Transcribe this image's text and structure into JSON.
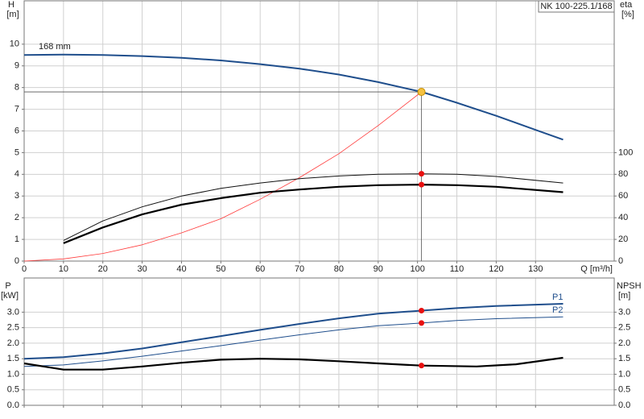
{
  "chart_data": [
    {
      "type": "line",
      "legend_box": "NK 100-225.1/168",
      "y_label": "H",
      "y_unit": "[m]",
      "y2_label": "eta",
      "y2_unit": "[%]",
      "x_label": "Q [m³/h]",
      "xlim": [
        0,
        150
      ],
      "xticks": [
        0,
        10,
        20,
        30,
        40,
        50,
        60,
        70,
        80,
        90,
        100,
        110,
        120,
        130
      ],
      "ylim": [
        0,
        12
      ],
      "yticks": [
        0,
        1,
        2,
        3,
        4,
        5,
        6,
        7,
        8,
        9,
        10
      ],
      "y2lim": [
        0,
        240
      ],
      "y2ticks": [
        0,
        20,
        40,
        60,
        80,
        100
      ],
      "grid": true,
      "show_xtick_labels": true,
      "series": [
        {
          "name": "168 mm",
          "label_at": "start",
          "color": "#1f4e8c",
          "width": 2,
          "x": [
            0,
            10,
            20,
            30,
            40,
            50,
            60,
            70,
            80,
            90,
            101,
            110,
            120,
            130,
            137
          ],
          "values": [
            9.5,
            9.52,
            9.5,
            9.45,
            9.37,
            9.25,
            9.08,
            8.87,
            8.6,
            8.25,
            7.8,
            7.3,
            6.7,
            6.05,
            5.6
          ]
        },
        {
          "color": "#ff3b3b",
          "width": 0.8,
          "x": [
            0,
            10,
            20,
            30,
            40,
            50,
            60,
            70,
            80,
            90,
            101
          ],
          "values": [
            0,
            0.1,
            0.35,
            0.75,
            1.3,
            1.95,
            2.85,
            3.85,
            4.95,
            6.25,
            7.8
          ]
        },
        {
          "axis": "y2",
          "color": "#111",
          "width": 1,
          "x": [
            10,
            20,
            30,
            40,
            50,
            60,
            70,
            80,
            90,
            101,
            110,
            120,
            137
          ],
          "values": [
            19,
            37,
            50,
            60,
            67,
            72,
            76,
            78.5,
            80,
            80.5,
            80,
            78,
            72
          ]
        },
        {
          "axis": "y2",
          "color": "#000",
          "width": 2.2,
          "x": [
            10,
            20,
            30,
            40,
            50,
            60,
            70,
            80,
            90,
            101,
            110,
            120,
            137
          ],
          "values": [
            16.5,
            31,
            43,
            52,
            58,
            63,
            66,
            68.5,
            70,
            70.5,
            70,
            68.5,
            63.5
          ]
        }
      ],
      "operating_point": {
        "x": 101,
        "y": 7.8,
        "color": "#f5c242"
      },
      "points": [
        {
          "x": 101,
          "y": 80.5,
          "axis": "y2",
          "color": "#e81010"
        },
        {
          "x": 101,
          "y": 70.5,
          "axis": "y2",
          "color": "#e81010"
        }
      ]
    },
    {
      "type": "line",
      "y_label": "P",
      "y_unit": "[kW]",
      "y2_label": "NPSH",
      "y2_unit": "[m]",
      "xlim": [
        0,
        150
      ],
      "xticks": [
        0,
        10,
        20,
        30,
        40,
        50,
        60,
        70,
        80,
        90,
        100,
        110,
        120,
        130
      ],
      "ylim": [
        0,
        4.1
      ],
      "yticks": [
        {
          "value": 0,
          "label": "0.0"
        },
        {
          "value": 0.5,
          "label": "0.5"
        },
        {
          "value": 1,
          "label": "1.0"
        },
        {
          "value": 1.5,
          "label": "1.5"
        },
        {
          "value": 2,
          "label": "2.0"
        },
        {
          "value": 2.5,
          "label": "2.5"
        },
        {
          "value": 3,
          "label": "3.0"
        }
      ],
      "y2lim": [
        0,
        4.1
      ],
      "y2ticks": [
        {
          "value": 0,
          "label": "0.0"
        },
        {
          "value": 0.5,
          "label": "0.5"
        },
        {
          "value": 1,
          "label": "1.0"
        },
        {
          "value": 1.5,
          "label": "1.5"
        },
        {
          "value": 2,
          "label": "2.0"
        },
        {
          "value": 2.5,
          "label": "2.5"
        },
        {
          "value": 3,
          "label": "3.0"
        }
      ],
      "grid": true,
      "show_xtick_labels": false,
      "series": [
        {
          "name": "P1",
          "label_at": "end",
          "color": "#1f4e8c",
          "width": 2,
          "x": [
            0,
            10,
            20,
            30,
            40,
            50,
            60,
            70,
            80,
            90,
            101,
            110,
            120,
            137
          ],
          "values": [
            1.5,
            1.55,
            1.67,
            1.83,
            2.03,
            2.23,
            2.43,
            2.62,
            2.8,
            2.95,
            3.05,
            3.13,
            3.2,
            3.27
          ]
        },
        {
          "name": "P2",
          "label_at": "end",
          "color": "#1f4e8c",
          "width": 1,
          "x": [
            0,
            10,
            20,
            30,
            40,
            50,
            60,
            70,
            80,
            90,
            101,
            110,
            120,
            137
          ],
          "values": [
            1.25,
            1.3,
            1.43,
            1.58,
            1.75,
            1.92,
            2.1,
            2.27,
            2.43,
            2.56,
            2.65,
            2.73,
            2.79,
            2.85
          ]
        },
        {
          "axis": "y2",
          "color": "#000",
          "width": 2.2,
          "x": [
            0,
            10,
            20,
            30,
            40,
            50,
            60,
            70,
            80,
            90,
            101,
            115,
            125,
            137
          ],
          "values": [
            1.35,
            1.15,
            1.15,
            1.25,
            1.37,
            1.47,
            1.5,
            1.48,
            1.42,
            1.35,
            1.28,
            1.25,
            1.32,
            1.53
          ]
        }
      ],
      "points": [
        {
          "x": 101,
          "y": 3.05,
          "color": "#e81010"
        },
        {
          "x": 101,
          "y": 2.65,
          "color": "#e81010"
        },
        {
          "x": 101,
          "y": 1.28,
          "axis": "y2",
          "color": "#e81010"
        }
      ]
    }
  ]
}
